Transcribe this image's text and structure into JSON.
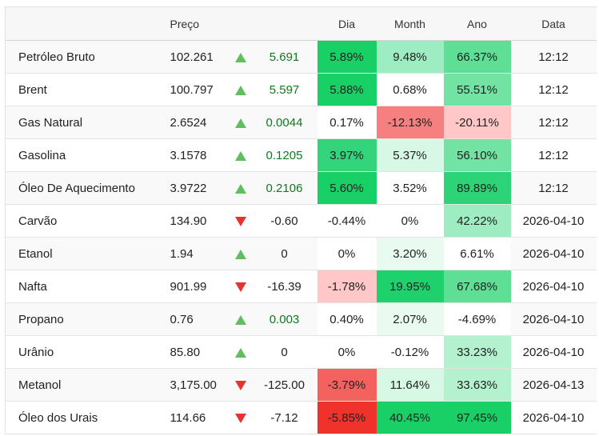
{
  "header": {
    "name": "",
    "price": "Preço",
    "day": "Dia",
    "month": "Month",
    "year": "Ano",
    "date": "Data"
  },
  "colors": {
    "up_arrow": "#5fbf5f",
    "down_arrow": "#e8322e",
    "up_text": "#0f7a1e"
  },
  "rows": [
    {
      "name": "Petróleo Bruto",
      "price": "102.261",
      "direction": "up",
      "change": "5.691",
      "day": {
        "text": "5.89%",
        "bg": "#19d067"
      },
      "month": {
        "text": "9.48%",
        "bg": "#9eedc2"
      },
      "year": {
        "text": "66.37%",
        "bg": "#5fdf95"
      },
      "date": "12:12"
    },
    {
      "name": "Brent",
      "price": "100.797",
      "direction": "up",
      "change": "5.597",
      "day": {
        "text": "5.88%",
        "bg": "#19d067"
      },
      "month": {
        "text": "0.68%",
        "bg": "#ffffff"
      },
      "year": {
        "text": "55.51%",
        "bg": "#72e3a3"
      },
      "date": "12:12"
    },
    {
      "name": "Gas Natural",
      "price": "2.6524",
      "direction": "up",
      "change": "0.0044",
      "day": {
        "text": "0.17%",
        "bg": "#ffffff"
      },
      "month": {
        "text": "-12.13%",
        "bg": "#f6807f"
      },
      "year": {
        "text": "-20.11%",
        "bg": "#ffc7c7"
      },
      "date": "12:12"
    },
    {
      "name": "Gasolina",
      "price": "3.1578",
      "direction": "up",
      "change": "0.1205",
      "day": {
        "text": "3.97%",
        "bg": "#33d47b"
      },
      "month": {
        "text": "5.37%",
        "bg": "#d6f8e5"
      },
      "year": {
        "text": "56.10%",
        "bg": "#72e3a3"
      },
      "date": "12:12"
    },
    {
      "name": "Óleo De Aquecimento",
      "price": "3.9722",
      "direction": "up",
      "change": "0.2106",
      "day": {
        "text": "5.60%",
        "bg": "#19d067"
      },
      "month": {
        "text": "3.52%",
        "bg": "#ffffff"
      },
      "year": {
        "text": "89.89%",
        "bg": "#2dd477"
      },
      "date": "12:12"
    },
    {
      "name": "Carvão",
      "price": "134.90",
      "direction": "down",
      "change": "-0.60",
      "day": {
        "text": "-0.44%",
        "bg": "#ffffff"
      },
      "month": {
        "text": "0%",
        "bg": "#ffffff"
      },
      "year": {
        "text": "42.22%",
        "bg": "#9eedc2"
      },
      "date": "2026-04-10"
    },
    {
      "name": "Etanol",
      "price": "1.94",
      "direction": "up",
      "change": "0",
      "day": {
        "text": "0%",
        "bg": "#ffffff"
      },
      "month": {
        "text": "3.20%",
        "bg": "#e9fbf1"
      },
      "year": {
        "text": "6.61%",
        "bg": "#ffffff"
      },
      "date": "2026-04-10"
    },
    {
      "name": "Nafta",
      "price": "901.99",
      "direction": "down",
      "change": "-16.39",
      "day": {
        "text": "-1.78%",
        "bg": "#ffc7c7"
      },
      "month": {
        "text": "19.95%",
        "bg": "#1fd16d"
      },
      "year": {
        "text": "67.68%",
        "bg": "#5fdf95"
      },
      "date": "2026-04-10"
    },
    {
      "name": "Propano",
      "price": "0.76",
      "direction": "up",
      "change": "0.003",
      "day": {
        "text": "0.40%",
        "bg": "#ffffff"
      },
      "month": {
        "text": "2.07%",
        "bg": "#e9fbf1"
      },
      "year": {
        "text": "-4.69%",
        "bg": "#ffffff"
      },
      "date": "2026-04-10"
    },
    {
      "name": "Urânio",
      "price": "85.80",
      "direction": "up",
      "change": "0",
      "day": {
        "text": "0%",
        "bg": "#ffffff"
      },
      "month": {
        "text": "-0.12%",
        "bg": "#ffffff"
      },
      "year": {
        "text": "33.23%",
        "bg": "#b3f1cf"
      },
      "date": "2026-04-10"
    },
    {
      "name": "Metanol",
      "price": "3,175.00",
      "direction": "down",
      "change": "-125.00",
      "day": {
        "text": "-3.79%",
        "bg": "#f4625f"
      },
      "month": {
        "text": "11.64%",
        "bg": "#d6f8e5"
      },
      "year": {
        "text": "33.63%",
        "bg": "#b3f1cf"
      },
      "date": "2026-04-13"
    },
    {
      "name": "Óleo dos Urais",
      "price": "114.66",
      "direction": "down",
      "change": "-7.12",
      "day": {
        "text": "-5.85%",
        "bg": "#f0322c"
      },
      "month": {
        "text": "40.45%",
        "bg": "#19d067"
      },
      "year": {
        "text": "97.45%",
        "bg": "#19d067"
      },
      "date": "2026-04-10"
    }
  ]
}
